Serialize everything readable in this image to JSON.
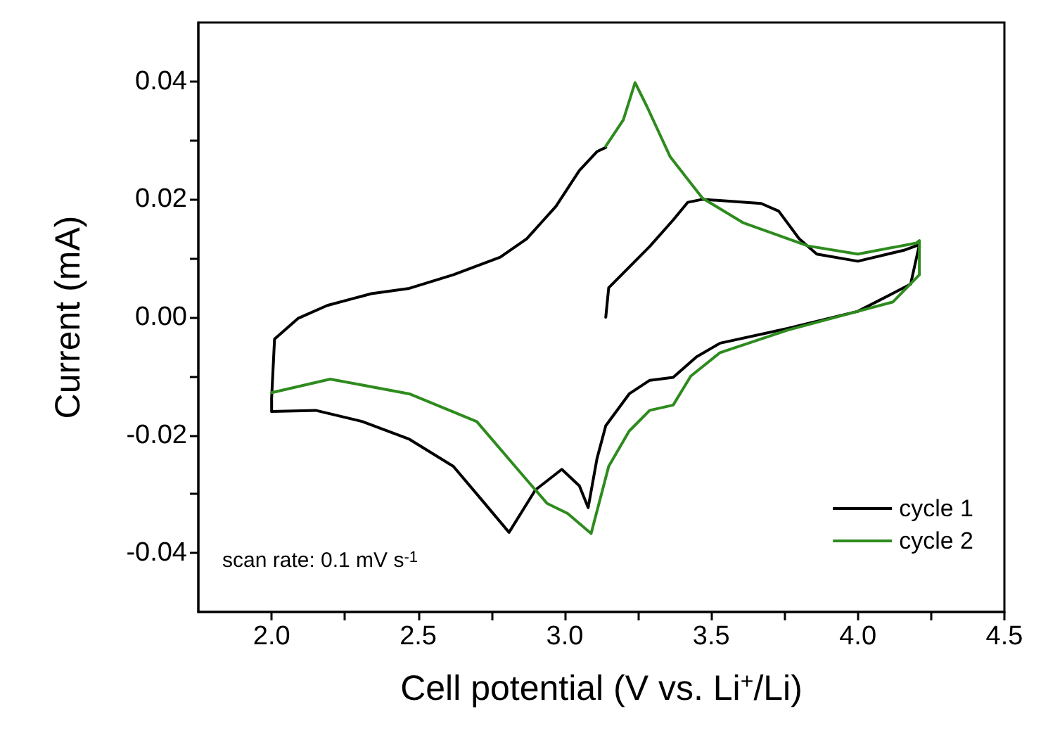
{
  "chart_data": {
    "type": "line",
    "xlabel": "Cell potential (V vs. Li$^{+}$/Li)",
    "ylabel": "Current (mA)",
    "xlim": [
      1.75,
      4.5
    ],
    "ylim": [
      -0.05,
      0.05
    ],
    "xticks": [
      {
        "value": 2,
        "label": "2.0"
      },
      {
        "value": 2.5,
        "label": "2.5"
      },
      {
        "value": 3,
        "label": "3.0"
      },
      {
        "value": 3.5,
        "label": "3.5"
      },
      {
        "value": 4,
        "label": "4.0"
      },
      {
        "value": 4.5,
        "label": "4.5"
      }
    ],
    "yticks": [
      {
        "value": -0.04,
        "label": "-0.04"
      },
      {
        "value": -0.02,
        "label": "-0.02"
      },
      {
        "value": 0,
        "label": "0.00"
      },
      {
        "value": 0.02,
        "label": "0.02"
      },
      {
        "value": 0.04,
        "label": "0.04"
      }
    ],
    "grid": false,
    "legend": "bottom right",
    "marker": "none",
    "line_style": "solid",
    "annotations": [
      "scan rate: 0.1 mV s$^{-1}$"
    ],
    "series": [
      {
        "name": "cycle 1",
        "color": "#000000",
        "x": [
          3.14,
          3.15,
          3.29,
          3.37,
          3.42,
          3.47,
          3.67,
          3.73,
          3.8,
          3.86,
          4.0,
          4.16,
          4.21,
          4.18,
          4.0,
          3.76,
          3.53,
          3.45,
          3.37,
          3.29,
          3.22,
          3.14,
          3.11,
          3.08,
          3.05,
          2.99,
          2.9,
          2.81,
          2.7,
          2.62,
          2.47,
          2.31,
          2.15,
          2.0,
          2.0,
          2.01,
          2.09,
          2.19,
          2.34,
          2.47,
          2.62,
          2.78,
          2.87,
          2.97,
          3.05,
          3.11,
          3.14
        ],
        "values": [
          0.0,
          0.005,
          0.012,
          0.0165,
          0.0195,
          0.02,
          0.0193,
          0.018,
          0.0133,
          0.0107,
          0.0095,
          0.0114,
          0.0123,
          0.0056,
          0.001,
          -0.0019,
          -0.0044,
          -0.0067,
          -0.0102,
          -0.0107,
          -0.013,
          -0.0184,
          -0.024,
          -0.0323,
          -0.0286,
          -0.0258,
          -0.0293,
          -0.0365,
          -0.03,
          -0.0253,
          -0.0207,
          -0.0177,
          -0.0158,
          -0.016,
          -0.0137,
          -0.0037,
          -0.0002,
          0.002,
          0.004,
          0.0049,
          0.0072,
          0.0102,
          0.0133,
          0.0188,
          0.0249,
          0.0281,
          0.0288
        ]
      },
      {
        "name": "cycle 2",
        "color": "#2e8b1e",
        "x": [
          3.14,
          3.2,
          3.24,
          3.28,
          3.36,
          3.47,
          3.61,
          3.83,
          4.0,
          4.2,
          4.21,
          4.21,
          4.12,
          4.0,
          3.76,
          3.53,
          3.43,
          3.37,
          3.29,
          3.22,
          3.15,
          3.09,
          3.01,
          2.94,
          2.86,
          2.7,
          2.47,
          2.2,
          2.0
        ],
        "values": [
          0.029,
          0.0335,
          0.0398,
          0.0358,
          0.0272,
          0.0202,
          0.016,
          0.0121,
          0.0107,
          0.0126,
          0.013,
          0.0072,
          0.0026,
          0.001,
          -0.0022,
          -0.006,
          -0.01,
          -0.0149,
          -0.0158,
          -0.0193,
          -0.0253,
          -0.0367,
          -0.0333,
          -0.0316,
          -0.027,
          -0.0177,
          -0.013,
          -0.0105,
          -0.0128
        ]
      }
    ]
  }
}
